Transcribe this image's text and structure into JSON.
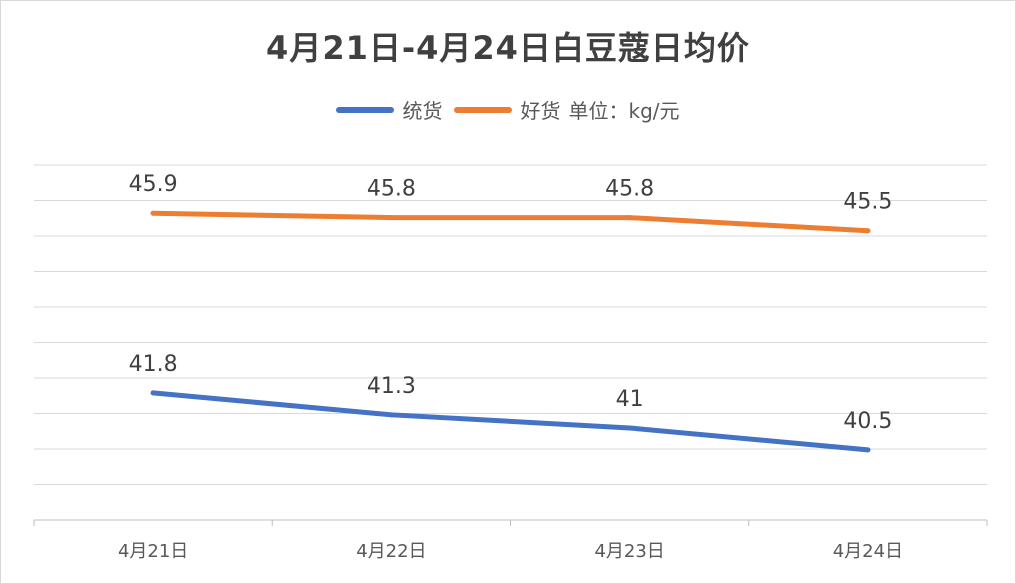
{
  "chart_data": {
    "type": "line",
    "title": "4月21日-4月24日白豆蔻日均价",
    "unit_label": "单位：kg/元",
    "categories": [
      "4月21日",
      "4月22日",
      "4月23日",
      "4月24日"
    ],
    "series": [
      {
        "name": "统货",
        "values": [
          41.8,
          41.3,
          41,
          40.5
        ],
        "labels": [
          "41.8",
          "41.3",
          "41",
          "40.5"
        ],
        "color": "#4472C4"
      },
      {
        "name": "好货",
        "values": [
          45.9,
          45.8,
          45.8,
          45.5
        ],
        "labels": [
          "45.9",
          "45.8",
          "45.8",
          "45.5"
        ],
        "color": "#ED7D31"
      }
    ],
    "ylim": [
      38.9,
      47.0
    ],
    "grid": true,
    "legend_position": "top"
  }
}
